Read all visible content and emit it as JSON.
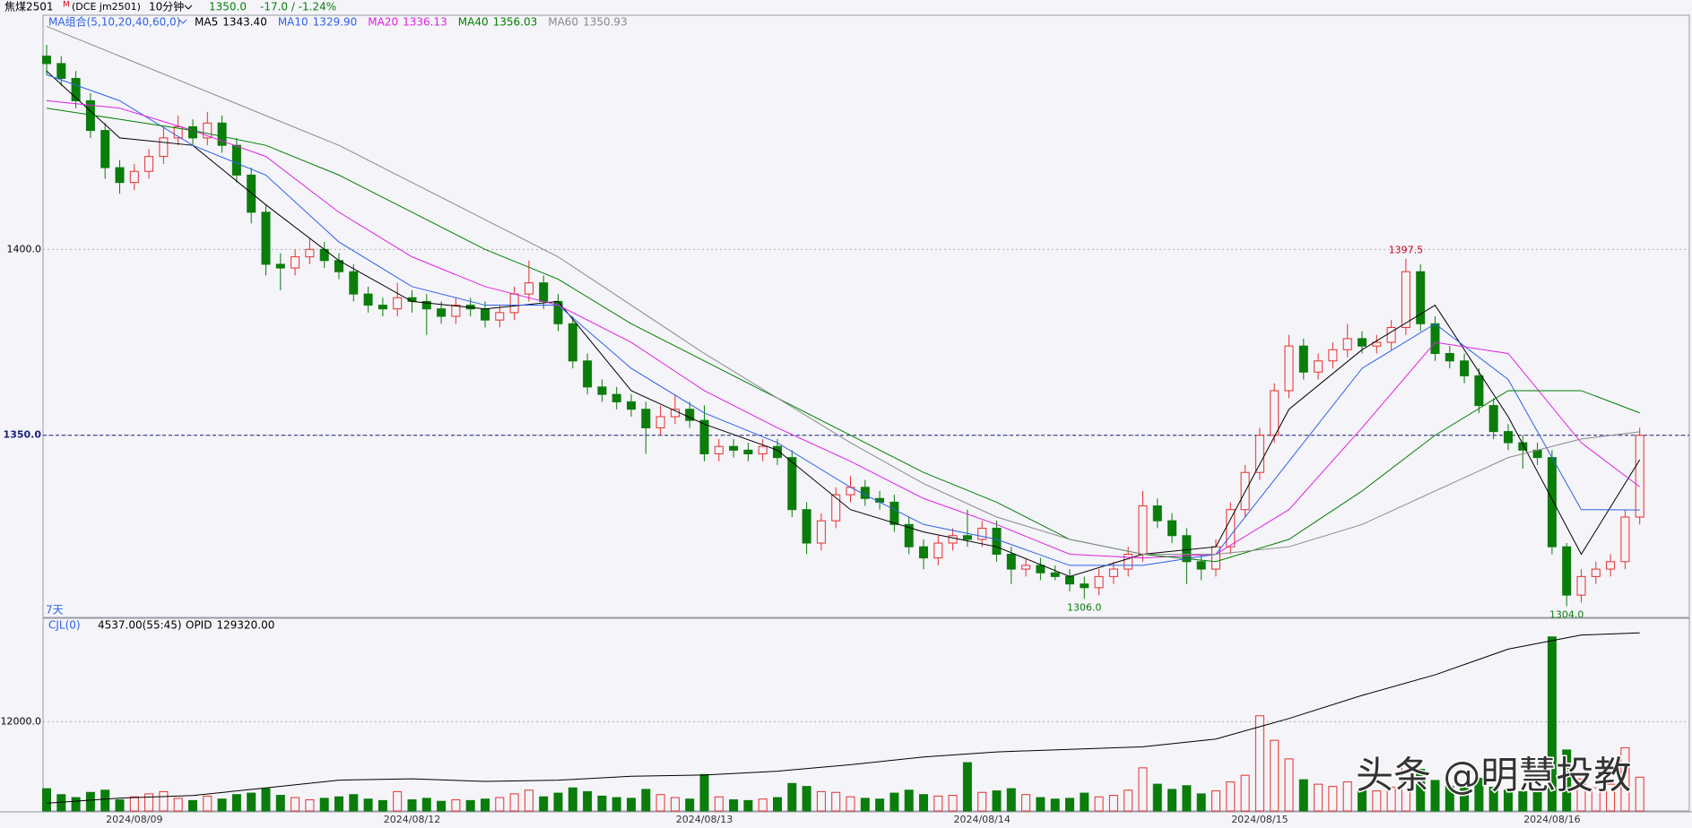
{
  "header": {
    "symbol": "焦煤2501",
    "flag": "M",
    "code": "(DCE jm2501)",
    "period": "10分钟",
    "last": {
      "value": 1350,
      "label": "1350.0"
    },
    "change": "-17.0 / -1.24%"
  },
  "watermark": "头条 @明慧投教",
  "chart_data": [
    {
      "type": "candlestick",
      "indicator": "MA组合(5,10,20,40,60,0)",
      "span_label": "7天",
      "up_color": "#e8302c",
      "down_color": "#0b7d0b",
      "grid": true,
      "ylim": [
        1301,
        1463
      ],
      "yticks": [
        {
          "value": 1350,
          "label": "1350.0"
        },
        {
          "value": 1400,
          "label": "1400.0"
        }
      ],
      "categories": [
        null,
        null,
        null,
        null,
        null,
        null,
        "2024/08/09",
        null,
        null,
        null,
        null,
        null,
        null,
        null,
        null,
        null,
        null,
        null,
        null,
        null,
        null,
        null,
        null,
        null,
        null,
        "2024/08/12",
        null,
        null,
        null,
        null,
        null,
        null,
        null,
        null,
        null,
        null,
        null,
        null,
        null,
        null,
        null,
        null,
        null,
        null,
        null,
        "2024/08/13",
        null,
        null,
        null,
        null,
        null,
        null,
        null,
        null,
        null,
        null,
        null,
        null,
        null,
        null,
        null,
        null,
        null,
        null,
        "2024/08/14",
        null,
        null,
        null,
        null,
        null,
        null,
        null,
        null,
        null,
        null,
        null,
        null,
        null,
        null,
        null,
        null,
        null,
        null,
        "2024/08/15",
        null,
        null,
        null,
        null,
        null,
        null,
        null,
        null,
        null,
        null,
        null,
        null,
        null,
        null,
        null,
        null,
        null,
        null,
        null,
        "2024/08/16",
        null,
        null,
        null,
        null,
        null,
        null
      ],
      "candles": [
        [
          1452,
          1455,
          1447,
          1450
        ],
        [
          1450,
          1452,
          1444,
          1446
        ],
        [
          1446,
          1448,
          1438,
          1440
        ],
        [
          1440,
          1442,
          1430,
          1432
        ],
        [
          1432,
          1434,
          1419,
          1422
        ],
        [
          1422,
          1424,
          1415,
          1418
        ],
        [
          1418,
          1423,
          1416,
          1421
        ],
        [
          1421,
          1427,
          1419,
          1425
        ],
        [
          1425,
          1433,
          1423,
          1430
        ],
        [
          1430,
          1436,
          1428,
          1433
        ],
        [
          1433,
          1435,
          1428,
          1430
        ],
        [
          1430,
          1437,
          1428,
          1434
        ],
        [
          1434,
          1436,
          1426,
          1428
        ],
        [
          1428,
          1430,
          1418,
          1420
        ],
        [
          1420,
          1422,
          1407,
          1410
        ],
        [
          1410,
          1412,
          1393,
          1396
        ],
        [
          1396,
          1399,
          1389,
          1395
        ],
        [
          1395,
          1400,
          1393,
          1398
        ],
        [
          1398,
          1403,
          1396,
          1400
        ],
        [
          1400,
          1402,
          1395,
          1397
        ],
        [
          1397,
          1399,
          1392,
          1394
        ],
        [
          1394,
          1396,
          1386,
          1388
        ],
        [
          1388,
          1390,
          1383,
          1385
        ],
        [
          1385,
          1387,
          1382,
          1384
        ],
        [
          1384,
          1391,
          1382,
          1387
        ],
        [
          1387,
          1389,
          1383,
          1386
        ],
        [
          1386,
          1388,
          1377,
          1384
        ],
        [
          1384,
          1386,
          1380,
          1382
        ],
        [
          1382,
          1387,
          1380,
          1385
        ],
        [
          1385,
          1387,
          1382,
          1384
        ],
        [
          1384,
          1386,
          1379,
          1381
        ],
        [
          1381,
          1385,
          1379,
          1383
        ],
        [
          1383,
          1390,
          1381,
          1388
        ],
        [
          1388,
          1397,
          1386,
          1391
        ],
        [
          1391,
          1393,
          1384,
          1386
        ],
        [
          1386,
          1388,
          1378,
          1380
        ],
        [
          1380,
          1382,
          1368,
          1370
        ],
        [
          1370,
          1372,
          1361,
          1363
        ],
        [
          1363,
          1365,
          1359,
          1361
        ],
        [
          1361,
          1363,
          1357,
          1359
        ],
        [
          1359,
          1361,
          1355,
          1357
        ],
        [
          1357,
          1359,
          1345,
          1352
        ],
        [
          1352,
          1358,
          1350,
          1355
        ],
        [
          1355,
          1361,
          1353,
          1357
        ],
        [
          1357,
          1359,
          1352,
          1354
        ],
        [
          1354,
          1358,
          1343,
          1345
        ],
        [
          1345,
          1349,
          1343,
          1347
        ],
        [
          1347,
          1349,
          1344,
          1346
        ],
        [
          1346,
          1348,
          1343,
          1345
        ],
        [
          1345,
          1349,
          1343,
          1347
        ],
        [
          1347,
          1349,
          1342,
          1344
        ],
        [
          1344,
          1346,
          1328,
          1330
        ],
        [
          1330,
          1332,
          1318,
          1321
        ],
        [
          1321,
          1329,
          1319,
          1327
        ],
        [
          1327,
          1336,
          1325,
          1334
        ],
        [
          1334,
          1339,
          1332,
          1336
        ],
        [
          1336,
          1338,
          1331,
          1333
        ],
        [
          1333,
          1335,
          1330,
          1332
        ],
        [
          1332,
          1334,
          1324,
          1326
        ],
        [
          1326,
          1328,
          1318,
          1320
        ],
        [
          1320,
          1322,
          1314,
          1317
        ],
        [
          1317,
          1323,
          1315,
          1321
        ],
        [
          1321,
          1325,
          1319,
          1323
        ],
        [
          1323,
          1330,
          1320,
          1322
        ],
        [
          1322,
          1327,
          1320,
          1325
        ],
        [
          1325,
          1327,
          1316,
          1318
        ],
        [
          1318,
          1320,
          1310,
          1314
        ],
        [
          1314,
          1317,
          1312,
          1315
        ],
        [
          1315,
          1317,
          1311,
          1313
        ],
        [
          1313,
          1315,
          1311,
          1312
        ],
        [
          1312,
          1314,
          1308,
          1310
        ],
        [
          1310,
          1312,
          1306,
          1309
        ],
        [
          1309,
          1314,
          1307,
          1312
        ],
        [
          1312,
          1316,
          1310,
          1314
        ],
        [
          1314,
          1320,
          1312,
          1318
        ],
        [
          1318,
          1335,
          1316,
          1331
        ],
        [
          1331,
          1333,
          1325,
          1327
        ],
        [
          1327,
          1329,
          1321,
          1323
        ],
        [
          1323,
          1325,
          1310,
          1316
        ],
        [
          1316,
          1318,
          1311,
          1314
        ],
        [
          1314,
          1322,
          1312,
          1320
        ],
        [
          1320,
          1332,
          1318,
          1330
        ],
        [
          1330,
          1342,
          1328,
          1340
        ],
        [
          1340,
          1352,
          1338,
          1350
        ],
        [
          1350,
          1364,
          1348,
          1362
        ],
        [
          1362,
          1377,
          1360,
          1374
        ],
        [
          1374,
          1376,
          1365,
          1367
        ],
        [
          1367,
          1372,
          1365,
          1370
        ],
        [
          1370,
          1375,
          1368,
          1373
        ],
        [
          1373,
          1380,
          1371,
          1376
        ],
        [
          1376,
          1378,
          1372,
          1374
        ],
        [
          1374,
          1377,
          1372,
          1375
        ],
        [
          1375,
          1381,
          1373,
          1379
        ],
        [
          1379,
          1397.5,
          1377,
          1394
        ],
        [
          1394,
          1396,
          1378,
          1380
        ],
        [
          1380,
          1382,
          1370,
          1372
        ],
        [
          1372,
          1374,
          1368,
          1370
        ],
        [
          1370,
          1372,
          1364,
          1366
        ],
        [
          1366,
          1368,
          1356,
          1358
        ],
        [
          1358,
          1360,
          1349,
          1351
        ],
        [
          1351,
          1353,
          1346,
          1348
        ],
        [
          1348,
          1350,
          1341,
          1346
        ],
        [
          1346,
          1348,
          1342,
          1344
        ],
        [
          1344,
          1346,
          1318,
          1320
        ],
        [
          1320,
          1321,
          1304,
          1307
        ],
        [
          1307,
          1314,
          1305,
          1312
        ],
        [
          1312,
          1316,
          1310,
          1314
        ],
        [
          1314,
          1318,
          1312,
          1316
        ],
        [
          1316,
          1330,
          1314,
          1328
        ],
        [
          1328,
          1352,
          1326,
          1350
        ]
      ],
      "series": [
        {
          "name": "MA5",
          "label": "1343.40",
          "color": "#000000",
          "x": [
            0,
            5,
            10,
            15,
            20,
            25,
            30,
            35,
            40,
            45,
            50,
            55,
            60,
            65,
            70,
            75,
            80,
            85,
            90,
            95,
            100,
            105,
            109
          ],
          "values": [
            1448,
            1430,
            1428,
            1412,
            1397,
            1386,
            1384,
            1386,
            1362,
            1353,
            1346,
            1330,
            1324,
            1320,
            1312,
            1318,
            1320,
            1357,
            1373,
            1385,
            1355,
            1318,
            1343.4
          ]
        },
        {
          "name": "MA10",
          "label": "1329.90",
          "color": "#2f62e6",
          "x": [
            0,
            5,
            10,
            15,
            20,
            25,
            30,
            35,
            40,
            45,
            50,
            55,
            60,
            65,
            70,
            75,
            80,
            85,
            90,
            95,
            100,
            105,
            109
          ],
          "values": [
            1447,
            1440,
            1428,
            1420,
            1402,
            1390,
            1385,
            1385,
            1368,
            1356,
            1348,
            1336,
            1326,
            1322,
            1315,
            1315,
            1318,
            1343,
            1368,
            1380,
            1365,
            1330,
            1329.9
          ]
        },
        {
          "name": "MA20",
          "label": "1336.13",
          "color": "#e020e0",
          "x": [
            0,
            5,
            10,
            15,
            20,
            25,
            30,
            35,
            40,
            45,
            50,
            55,
            60,
            65,
            70,
            75,
            80,
            85,
            90,
            95,
            100,
            105,
            109
          ],
          "values": [
            1440,
            1438,
            1432,
            1425,
            1410,
            1398,
            1390,
            1385,
            1375,
            1362,
            1352,
            1343,
            1333,
            1326,
            1318,
            1317,
            1318,
            1330,
            1352,
            1375,
            1372,
            1348,
            1336.13
          ]
        },
        {
          "name": "MA40",
          "label": "1356.03",
          "color": "#008000",
          "x": [
            0,
            5,
            10,
            15,
            20,
            25,
            30,
            35,
            40,
            45,
            50,
            55,
            60,
            65,
            70,
            75,
            80,
            85,
            90,
            95,
            100,
            105,
            109
          ],
          "values": [
            1438,
            1435,
            1432,
            1428,
            1420,
            1410,
            1400,
            1392,
            1380,
            1370,
            1360,
            1350,
            1340,
            1332,
            1322,
            1318,
            1316,
            1322,
            1335,
            1350,
            1362,
            1362,
            1356.03
          ]
        },
        {
          "name": "MA60",
          "label": "1350.93",
          "color": "#8a8a8a",
          "x": [
            0,
            5,
            10,
            15,
            20,
            25,
            30,
            35,
            40,
            45,
            50,
            55,
            60,
            65,
            70,
            75,
            80,
            85,
            90,
            95,
            100,
            105,
            109
          ],
          "values": [
            1460,
            1452,
            1444,
            1436,
            1428,
            1418,
            1408,
            1398,
            1385,
            1372,
            1360,
            1348,
            1337,
            1328,
            1322,
            1318,
            1318,
            1320,
            1326,
            1335,
            1344,
            1349,
            1350.93
          ]
        }
      ],
      "annotations": [
        {
          "value": 1397.5,
          "label": "1397.5",
          "color": "#d0021b"
        },
        {
          "value": 1306,
          "label": "1306.0",
          "color": "#0b7d0b"
        },
        {
          "value": 1304,
          "label": "1304.0",
          "color": "#0b7d0b"
        }
      ]
    },
    {
      "type": "bar",
      "name": "CJL(0)",
      "value_label": "4537.00(55:45)",
      "ylim": [
        0,
        25900
      ],
      "yticks": [
        {
          "value": 12000,
          "label": "12000.0"
        }
      ],
      "grid": true,
      "values": [
        3000,
        2200,
        1800,
        2500,
        2800,
        1500,
        1900,
        2300,
        2600,
        1700,
        1400,
        2000,
        1600,
        2200,
        2400,
        3000,
        2100,
        1800,
        1500,
        1700,
        1900,
        2200,
        1600,
        1400,
        2600,
        1500,
        1700,
        1300,
        1500,
        1400,
        1600,
        1800,
        2300,
        2800,
        1900,
        2400,
        3100,
        2600,
        2000,
        1800,
        1700,
        2900,
        2200,
        1800,
        1600,
        4900,
        1900,
        1500,
        1400,
        1600,
        1800,
        3700,
        3300,
        2600,
        2500,
        1900,
        1700,
        1600,
        2400,
        2800,
        2200,
        2000,
        2100,
        6500,
        2500,
        2700,
        3000,
        2200,
        1800,
        1600,
        1700,
        2400,
        1900,
        2100,
        2800,
        5800,
        3600,
        2900,
        3400,
        2300,
        2700,
        3900,
        4800,
        12800,
        9500,
        7000,
        4200,
        3600,
        3300,
        3900,
        2900,
        2700,
        3200,
        6200,
        5600,
        4100,
        3300,
        3500,
        4400,
        3200,
        2800,
        2600,
        3000,
        23400,
        8200,
        4300,
        3100,
        3600,
        8500,
        4537
      ],
      "y2lim": [
        60000,
        135000
      ],
      "series": [
        {
          "name": "OPID",
          "label": "129320.00",
          "color": "#000000",
          "axis": "y2",
          "x": [
            0,
            5,
            10,
            15,
            20,
            25,
            30,
            35,
            40,
            45,
            50,
            55,
            60,
            65,
            70,
            75,
            80,
            85,
            90,
            95,
            100,
            105,
            109
          ],
          "values": [
            63000,
            65000,
            66000,
            69000,
            72000,
            72500,
            71500,
            72000,
            73500,
            74000,
            75500,
            78000,
            81000,
            83000,
            84000,
            85000,
            88000,
            96000,
            105000,
            113000,
            123000,
            128500,
            129320
          ]
        }
      ]
    }
  ]
}
